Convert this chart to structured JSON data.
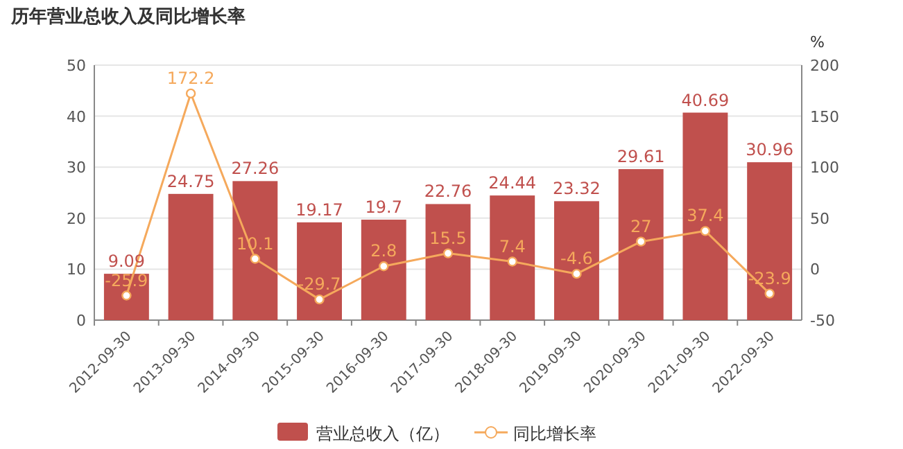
{
  "chart_data": {
    "type": "bar",
    "title": "历年营业总收入及同比增长率",
    "categories": [
      "2012-09-30",
      "2013-09-30",
      "2014-09-30",
      "2015-09-30",
      "2016-09-30",
      "2017-09-30",
      "2018-09-30",
      "2019-09-30",
      "2020-09-30",
      "2021-09-30",
      "2022-09-30"
    ],
    "series": [
      {
        "name": "营业总收入（亿）",
        "color": "#c0504d",
        "values": [
          9.09,
          24.75,
          27.26,
          19.17,
          19.7,
          22.76,
          24.44,
          23.32,
          29.61,
          40.69,
          30.96
        ]
      },
      {
        "name": "同比增长率",
        "type": "line",
        "axis": "y2",
        "color": "#f5a95c",
        "values": [
          -25.9,
          172.2,
          10.1,
          -29.7,
          2.8,
          15.5,
          7.4,
          -4.6,
          27,
          37.4,
          -23.9
        ]
      }
    ],
    "ylim": [
      0,
      50
    ],
    "yticks": [
      0,
      10,
      20,
      30,
      40,
      50
    ],
    "y2lim": [
      -50,
      200
    ],
    "y2ticks": [
      -50,
      0,
      50,
      100,
      150,
      200
    ],
    "y2label": "%",
    "grid": "y",
    "legend": "bottom",
    "marker": "circle",
    "data_labels": true
  }
}
